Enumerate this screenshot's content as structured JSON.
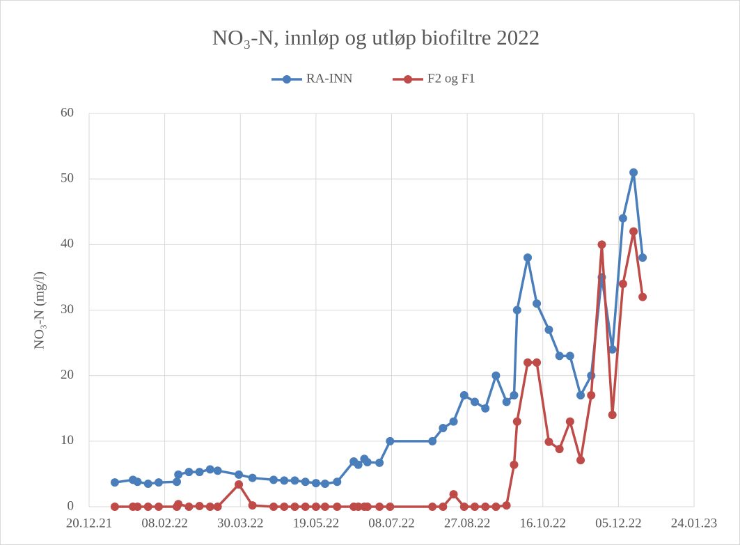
{
  "chart_data": {
    "type": "line",
    "title": "NO₃-N, innløp og utløp biofiltre 2022",
    "y_label": "NO₃-N (mg/l)",
    "x": [
      "06.01.22",
      "18.01.22",
      "21.01.22",
      "28.01.22",
      "04.02.22",
      "16.02.22",
      "17.02.22",
      "24.02.22",
      "03.03.22",
      "10.03.22",
      "15.03.22",
      "29.03.22",
      "07.04.22",
      "21.04.22",
      "28.04.22",
      "05.05.22",
      "12.05.22",
      "19.05.22",
      "25.05.22",
      "02.06.22",
      "13.06.22",
      "16.06.22",
      "20.06.22",
      "22.06.22",
      "30.06.22",
      "07.07.22",
      "04.08.22",
      "11.08.22",
      "18.08.22",
      "25.08.22",
      "01.09.22",
      "08.09.22",
      "15.09.22",
      "22.09.22",
      "27.09.22",
      "29.09.22",
      "06.10.22",
      "12.10.22",
      "20.10.22",
      "27.10.22",
      "03.11.22",
      "10.11.22",
      "17.11.22",
      "24.11.22",
      "01.12.22",
      "08.12.22",
      "15.12.22",
      "21.12.22"
    ],
    "series": [
      {
        "name": "RA-INN",
        "color": "#4a7ebb",
        "values": [
          3.7,
          4.1,
          3.8,
          3.5,
          3.7,
          3.8,
          4.9,
          5.3,
          5.3,
          5.7,
          5.5,
          4.9,
          4.4,
          4.1,
          4.0,
          4.0,
          3.8,
          3.6,
          3.5,
          3.8,
          6.9,
          6.4,
          7.3,
          6.8,
          6.7,
          10,
          10,
          12,
          13,
          17,
          16,
          15,
          20,
          16,
          17,
          30,
          38,
          31,
          27,
          23,
          23,
          17,
          20,
          35,
          24,
          44,
          51,
          38
        ]
      },
      {
        "name": "F2 og F1",
        "color": "#be4b48",
        "values": [
          0,
          0,
          0,
          0,
          0,
          0,
          0.4,
          0,
          0.1,
          0,
          0,
          3.4,
          0.2,
          0,
          0,
          0,
          0,
          0,
          0,
          0,
          0,
          0,
          0,
          0,
          0,
          0,
          0,
          0,
          1.9,
          0,
          0,
          0,
          0,
          0.2,
          6.4,
          13,
          22,
          22,
          9.9,
          8.8,
          13,
          7.1,
          17,
          40,
          14,
          34,
          42,
          32
        ]
      }
    ],
    "xlim": [
      "20.12.21",
      "24.01.23"
    ],
    "xticks": [
      "20.12.21",
      "08.02.22",
      "30.03.22",
      "19.05.22",
      "08.07.22",
      "27.08.22",
      "16.10.22",
      "05.12.22",
      "24.01.23"
    ],
    "ylim": [
      0,
      60
    ],
    "yticks": [
      0,
      10,
      20,
      30,
      40,
      50,
      60
    ],
    "grid": true,
    "legend": "top"
  }
}
